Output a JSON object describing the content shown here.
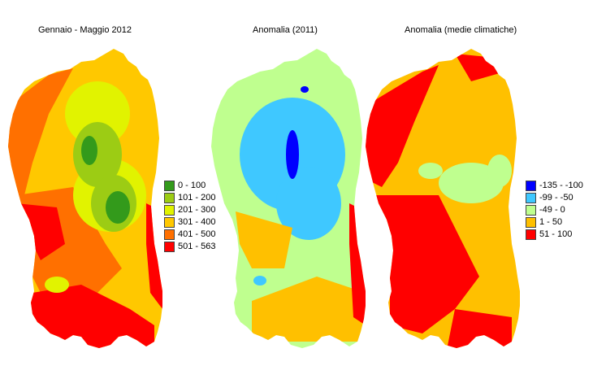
{
  "panels": [
    {
      "title": "Gennaio - Maggio 2012",
      "palette": [
        "#339a1b",
        "#9ccc14",
        "#e1f300",
        "#ffc800",
        "#ff7000",
        "#ff0000"
      ],
      "legend": [
        {
          "label": "0 - 100",
          "color": "#339a1b"
        },
        {
          "label": "101 - 200",
          "color": "#9ccc14"
        },
        {
          "label": "201 - 300",
          "color": "#e1f300"
        },
        {
          "label": "301 - 400",
          "color": "#ffc800"
        },
        {
          "label": "401 - 500",
          "color": "#ff7000"
        },
        {
          "label": "501 - 563",
          "color": "#ff0000"
        }
      ]
    },
    {
      "title": "Anomalia (2011)",
      "palette": [
        "#0000ff",
        "#3fc8ff",
        "#bfff8f",
        "#ffc000",
        "#ff0000"
      ],
      "legend": []
    },
    {
      "title": "Anomalia (medie climatiche)",
      "palette": [
        "#0000ff",
        "#3fc8ff",
        "#bfff8f",
        "#ffc000",
        "#ff0000"
      ],
      "legend": [
        {
          "label": "-135 - -100",
          "color": "#0000ff"
        },
        {
          "label": "-99 - -50",
          "color": "#3fc8ff"
        },
        {
          "label": "-49 - 0",
          "color": "#bfff8f"
        },
        {
          "label": "1 - 50",
          "color": "#ffc000"
        },
        {
          "label": "51 - 100",
          "color": "#ff0000"
        }
      ]
    }
  ]
}
